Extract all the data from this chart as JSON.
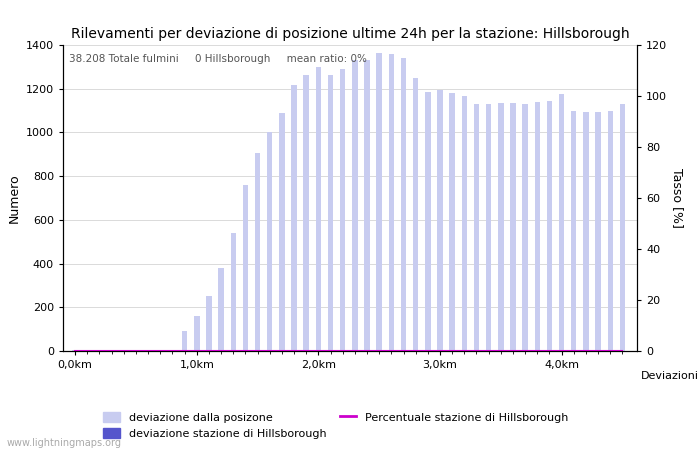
{
  "title": "Rilevamenti per deviazione di posizione ultime 24h per la stazione: Hillsborough",
  "xlabel": "Deviazioni",
  "ylabel_left": "Numero",
  "ylabel_right": "Tasso [%]",
  "annotation": "38.208 Totale fulmini     0 Hillsborough     mean ratio: 0%",
  "watermark": "www.lightningmaps.org",
  "bar_color": "#c8ccf0",
  "bar_station_color": "#5555cc",
  "line_color": "#cc00cc",
  "bar_width": 0.045,
  "x_tick_labels": [
    "0,0km",
    "1,0km",
    "2,0km",
    "3,0km",
    "4,0km"
  ],
  "x_tick_positions": [
    0.0,
    1.0,
    2.0,
    3.0,
    4.0
  ],
  "ylim_left": [
    0,
    1400
  ],
  "ylim_right": [
    0,
    120
  ],
  "yticks_left": [
    0,
    200,
    400,
    600,
    800,
    1000,
    1200,
    1400
  ],
  "yticks_right": [
    0,
    20,
    40,
    60,
    80,
    100,
    120
  ],
  "bar_positions": [
    0.0,
    0.1,
    0.2,
    0.3,
    0.4,
    0.5,
    0.6,
    0.7,
    0.8,
    0.9,
    1.0,
    1.1,
    1.2,
    1.3,
    1.4,
    1.5,
    1.6,
    1.7,
    1.8,
    1.9,
    2.0,
    2.1,
    2.2,
    2.3,
    2.4,
    2.5,
    2.6,
    2.7,
    2.8,
    2.9,
    3.0,
    3.1,
    3.2,
    3.3,
    3.4,
    3.5,
    3.6,
    3.7,
    3.8,
    3.9,
    4.0,
    4.1,
    4.2,
    4.3,
    4.4,
    4.5
  ],
  "bar_values": [
    5,
    2,
    2,
    2,
    2,
    2,
    2,
    2,
    2,
    90,
    160,
    250,
    380,
    540,
    760,
    905,
    1000,
    1090,
    1215,
    1265,
    1300,
    1265,
    1290,
    1330,
    1330,
    1365,
    1360,
    1340,
    1250,
    1185,
    1195,
    1180,
    1165,
    1130,
    1130,
    1135,
    1135,
    1130,
    1140,
    1145,
    1175,
    1100,
    1095,
    1095,
    1100,
    1130
  ],
  "station_bar_values": [
    0,
    0,
    0,
    0,
    0,
    0,
    0,
    0,
    0,
    0,
    0,
    0,
    0,
    0,
    0,
    0,
    0,
    0,
    0,
    0,
    0,
    0,
    0,
    0,
    0,
    0,
    0,
    0,
    0,
    0,
    0,
    0,
    0,
    0,
    0,
    0,
    0,
    0,
    0,
    0,
    0,
    0,
    0,
    0,
    0,
    0
  ],
  "ratio_values": [
    0,
    0,
    0,
    0,
    0,
    0,
    0,
    0,
    0,
    0,
    0,
    0,
    0,
    0,
    0,
    0,
    0,
    0,
    0,
    0,
    0,
    0,
    0,
    0,
    0,
    0,
    0,
    0,
    0,
    0,
    0,
    0,
    0,
    0,
    0,
    0,
    0,
    0,
    0,
    0,
    0,
    0,
    0,
    0,
    0,
    0
  ],
  "legend_labels": [
    "deviazione dalla posizone",
    "deviazione stazione di Hillsborough",
    "Percentuale stazione di Hillsborough"
  ]
}
